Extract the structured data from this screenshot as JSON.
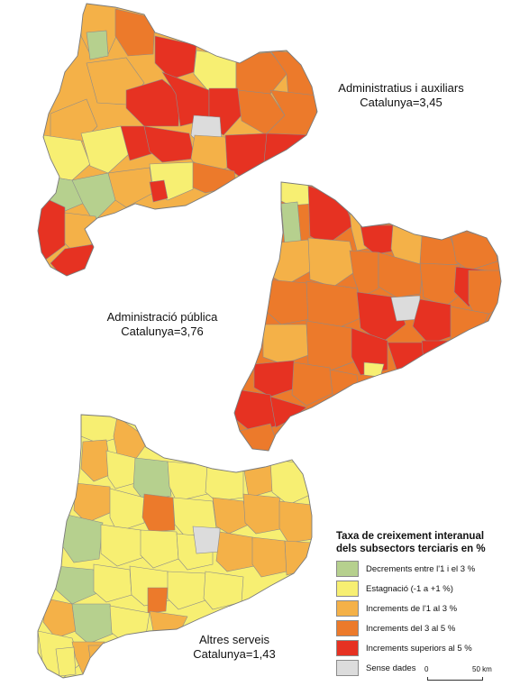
{
  "maps": [
    {
      "id": "top",
      "title": "Administratius i auxiliars",
      "total": "Catalunya=3,45"
    },
    {
      "id": "middle",
      "title": "Administració pública",
      "total": "Catalunya=3,76"
    },
    {
      "id": "bottom",
      "title": "Altres serveis",
      "total": "Catalunya=1,43"
    }
  ],
  "legend": {
    "title_line1": "Taxa de creixement interanual",
    "title_line2": "dels subsectors terciaris en %",
    "items": [
      {
        "label": "Decrements entre l'1 i el 3 %",
        "color": "#b6d08e"
      },
      {
        "label": "Estagnació (-1 a +1 %)",
        "color": "#f7ef72"
      },
      {
        "label": "Increments de l'1 al 3 %",
        "color": "#f4b148"
      },
      {
        "label": "Increments del 3 al 5 %",
        "color": "#ec7a2b"
      },
      {
        "label": "Increments superiors al 5 %",
        "color": "#e63222"
      },
      {
        "label": "Sense dades",
        "color": "#dcdcdc"
      }
    ]
  },
  "scale": {
    "zero": "0",
    "distance": "50 km"
  }
}
